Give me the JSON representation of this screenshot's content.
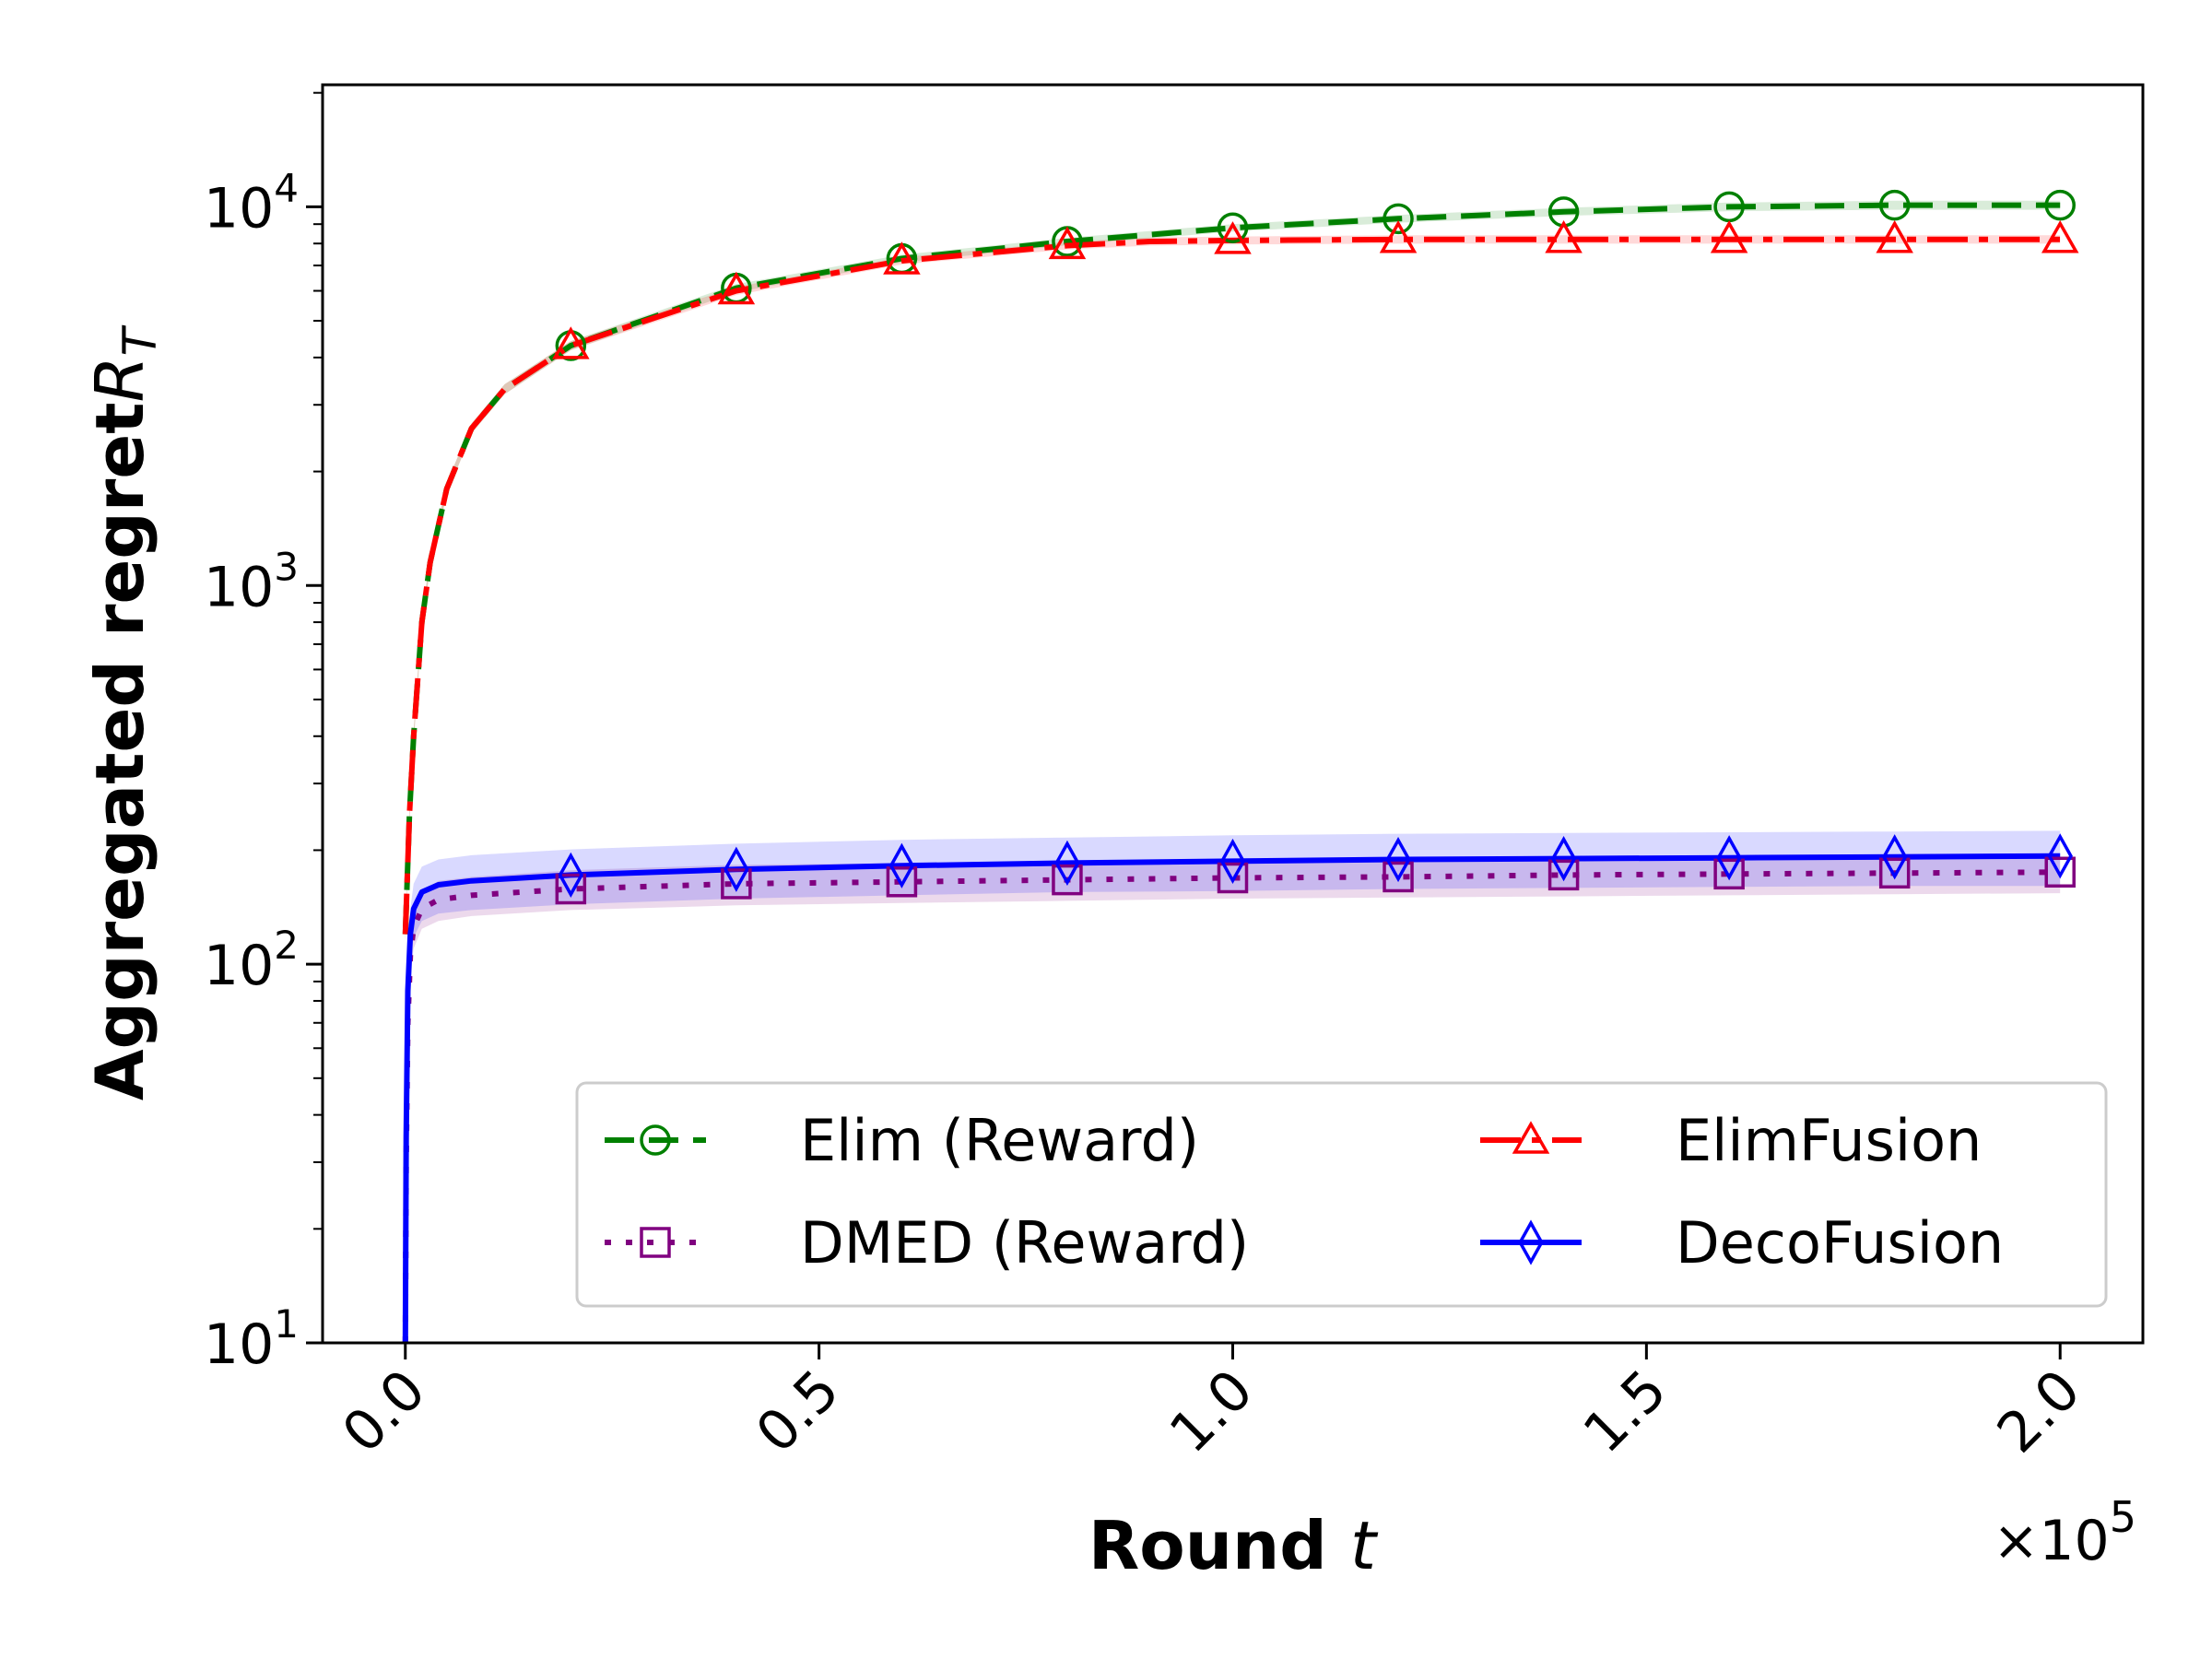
{
  "chart_data": {
    "type": "line",
    "xlabel": "Round",
    "xlabel_var": "t",
    "ylabel": "Aggregated regret",
    "ylabel_var": "R",
    "ylabel_sub": "T",
    "x_multiplier": "×10",
    "x_multiplier_exp": "5",
    "xlim": [
      -10000,
      210000
    ],
    "ylim": [
      10,
      21000
    ],
    "yscale": "log",
    "x_ticks": [
      {
        "value": 0,
        "label": "0.0"
      },
      {
        "value": 50000,
        "label": "0.5"
      },
      {
        "value": 100000,
        "label": "1.0"
      },
      {
        "value": 150000,
        "label": "1.5"
      },
      {
        "value": 200000,
        "label": "2.0"
      }
    ],
    "y_ticks": [
      {
        "value": 10,
        "base": "10",
        "exp": "1"
      },
      {
        "value": 100,
        "base": "10",
        "exp": "2"
      },
      {
        "value": 1000,
        "base": "10",
        "exp": "3"
      },
      {
        "value": 10000,
        "base": "10",
        "exp": "4"
      }
    ],
    "grid": false,
    "legend_position": "lower-right",
    "series": [
      {
        "name": "Elim (Reward)",
        "color": "#008000",
        "dash": "32,16",
        "marker": "circle",
        "x": [
          0,
          500,
          1000,
          2000,
          3000,
          5000,
          8000,
          12000,
          20000,
          40000,
          60000,
          80000,
          100000,
          120000,
          140000,
          160000,
          180000,
          200000
        ],
        "y": [
          120,
          250,
          400,
          800,
          1150,
          1800,
          2600,
          3300,
          4300,
          6100,
          7300,
          8100,
          8800,
          9300,
          9700,
          10000,
          10100,
          10100
        ],
        "marker_x": [
          20000,
          40000,
          60000,
          80000,
          100000,
          120000,
          140000,
          160000,
          180000,
          200000
        ],
        "marker_y": [
          4300,
          6100,
          7300,
          8100,
          8800,
          9300,
          9700,
          10000,
          10100,
          10100
        ],
        "band_lower": [
          115,
          240,
          385,
          770,
          1110,
          1740,
          2520,
          3200,
          4180,
          5950,
          7130,
          7920,
          8600,
          9080,
          9460,
          9740,
          9820,
          9820
        ],
        "band_upper": [
          125,
          260,
          415,
          830,
          1190,
          1860,
          2680,
          3400,
          4420,
          6250,
          7470,
          8280,
          9000,
          9520,
          9940,
          10260,
          10380,
          10380
        ]
      },
      {
        "name": "ElimFusion",
        "color": "#ff0000",
        "dash": "44,12,10,12",
        "marker": "triangle",
        "x": [
          0,
          500,
          1000,
          2000,
          3000,
          5000,
          8000,
          12000,
          20000,
          40000,
          60000,
          80000,
          90000,
          100000,
          120000,
          140000,
          160000,
          180000,
          200000
        ],
        "y": [
          120,
          250,
          400,
          800,
          1150,
          1800,
          2600,
          3300,
          4300,
          6000,
          7200,
          7900,
          8100,
          8150,
          8200,
          8200,
          8200,
          8200,
          8200
        ],
        "marker_x": [
          20000,
          40000,
          60000,
          80000,
          100000,
          120000,
          140000,
          160000,
          180000,
          200000
        ],
        "marker_y": [
          4300,
          6000,
          7200,
          7900,
          8150,
          8200,
          8200,
          8200,
          8200,
          8200
        ],
        "band_lower": [
          115,
          240,
          385,
          770,
          1110,
          1740,
          2520,
          3200,
          4180,
          5850,
          7040,
          7720,
          7900,
          7950,
          7990,
          7990,
          7990,
          7990,
          7990
        ],
        "band_upper": [
          125,
          260,
          415,
          830,
          1190,
          1860,
          2680,
          3400,
          4420,
          6150,
          7360,
          8080,
          8300,
          8350,
          8410,
          8410,
          8410,
          8410,
          8410
        ]
      },
      {
        "name": "DMED (Reward)",
        "color": "#800080",
        "dash": "7,16",
        "marker": "square",
        "x": [
          0,
          100,
          300,
          600,
          1000,
          2000,
          4000,
          8000,
          20000,
          40000,
          60000,
          80000,
          100000,
          120000,
          140000,
          160000,
          180000,
          200000
        ],
        "y": [
          10,
          30,
          70,
          105,
          125,
          140,
          148,
          152,
          158,
          163,
          165,
          167,
          169,
          170,
          172,
          173,
          174,
          175
        ],
        "marker_x": [
          20000,
          40000,
          60000,
          80000,
          100000,
          120000,
          140000,
          160000,
          180000,
          200000
        ],
        "marker_y": [
          158,
          163,
          165,
          167,
          169,
          170,
          172,
          173,
          174,
          175
        ],
        "band_lower": [
          9,
          26,
          62,
          93,
          110,
          124,
          130,
          134,
          139,
          143,
          145,
          147,
          149,
          150,
          151,
          152,
          153,
          154
        ],
        "band_upper": [
          11,
          34,
          78,
          117,
          140,
          156,
          166,
          170,
          177,
          183,
          185,
          187,
          189,
          190,
          193,
          194,
          195,
          196
        ]
      },
      {
        "name": "DecoFusion",
        "color": "#0000ff",
        "dash": "",
        "marker": "diamond",
        "x": [
          0,
          100,
          300,
          600,
          1000,
          2000,
          4000,
          8000,
          20000,
          40000,
          60000,
          80000,
          100000,
          120000,
          140000,
          160000,
          180000,
          200000
        ],
        "y": [
          10,
          35,
          85,
          120,
          140,
          155,
          162,
          166,
          172,
          178,
          182,
          185,
          187,
          189,
          190,
          191,
          192,
          193
        ],
        "marker_x": [
          20000,
          40000,
          60000,
          80000,
          100000,
          120000,
          140000,
          160000,
          180000,
          200000
        ],
        "marker_y": [
          172,
          178,
          182,
          185,
          187,
          189,
          190,
          191,
          192,
          193
        ],
        "band_lower": [
          9,
          30,
          73,
          102,
          118,
          130,
          136,
          139,
          144,
          149,
          152,
          155,
          156,
          158,
          159,
          160,
          161,
          161
        ],
        "band_upper": [
          11,
          40,
          98,
          140,
          163,
          181,
          189,
          194,
          201,
          208,
          213,
          216,
          219,
          221,
          222,
          223,
          224,
          225
        ]
      }
    ]
  }
}
